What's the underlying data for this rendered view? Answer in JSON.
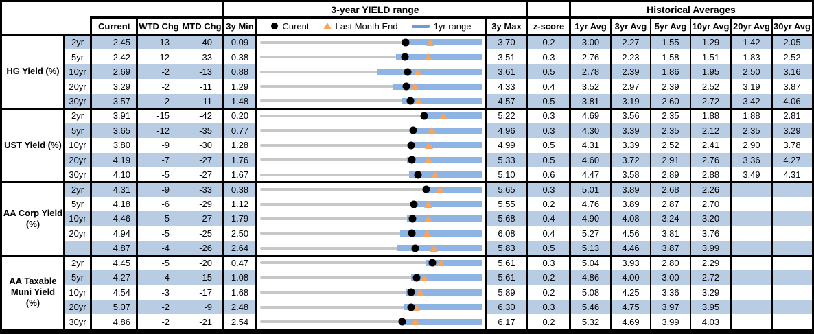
{
  "header": {
    "range_title": "3-year YIELD range",
    "hist_title": "Historical Averages",
    "current": "Current",
    "wtd": "WTD Chg",
    "mtd": "MTD Chg",
    "min3y": "3y Min",
    "max3y": "3y Max",
    "zscore": "z-score",
    "avgs": [
      "1yr Avg",
      "3yr Avg",
      "5yr Avg",
      "10yr Avg",
      "20yr Avg",
      "30yr Avg"
    ],
    "legend": {
      "current": "Curent",
      "last_month": "Last Month End",
      "range": "1yr range"
    }
  },
  "colors": {
    "stripe": "#b8cce4",
    "bar": "#8db4e2",
    "track": "#c7c7c7",
    "triangle": "#f9a45c",
    "dot": "#000000",
    "legend_bar": "#6d9dd5",
    "border": "#000000"
  },
  "chart_data": {
    "type": "table",
    "title": "3-year YIELD range",
    "note": "Each row is a bullet/range chart: gray track spans 3y Min..3y Max, blue bar = 1yr range, black dot = Current, orange triangle = Last Month End. 20yr/30yr averages blank for AA Corp and AA Taxable Muni.",
    "groups": [
      {
        "label": "HG Yield (%)",
        "rows": [
          {
            "tenor": "2yr",
            "current": "2.45",
            "wtd": "-13",
            "mtd": "-40",
            "min": "0.09",
            "max": "3.70",
            "zscore": "0.2",
            "avgs": [
              "3.00",
              "2.27",
              "1.55",
              "1.29",
              "1.42",
              "2.05"
            ],
            "min_num": 0.09,
            "max_num": 3.7,
            "cur_num": 2.45,
            "lm_num": 2.85,
            "bar_lo": 2.38,
            "bar_hi": 3.7
          },
          {
            "tenor": "5yr",
            "current": "2.42",
            "wtd": "-12",
            "mtd": "-33",
            "min": "0.38",
            "max": "3.51",
            "zscore": "0.3",
            "avgs": [
              "2.76",
              "2.23",
              "1.58",
              "1.51",
              "1.83",
              "2.52"
            ],
            "min_num": 0.38,
            "max_num": 3.51,
            "cur_num": 2.42,
            "lm_num": 2.75,
            "bar_lo": 2.29,
            "bar_hi": 3.51
          },
          {
            "tenor": "10yr",
            "current": "2.69",
            "wtd": "-2",
            "mtd": "-13",
            "min": "0.88",
            "max": "3.61",
            "zscore": "0.5",
            "avgs": [
              "2.78",
              "2.39",
              "1.86",
              "1.95",
              "2.50",
              "3.16"
            ],
            "min_num": 0.88,
            "max_num": 3.61,
            "cur_num": 2.69,
            "lm_num": 2.82,
            "bar_lo": 2.31,
            "bar_hi": 3.61
          },
          {
            "tenor": "20yr",
            "current": "3.29",
            "wtd": "-2",
            "mtd": "-11",
            "min": "1.29",
            "max": "4.33",
            "zscore": "0.4",
            "avgs": [
              "3.52",
              "2.97",
              "2.39",
              "2.52",
              "3.19",
              "3.87"
            ],
            "min_num": 1.29,
            "max_num": 4.33,
            "cur_num": 3.29,
            "lm_num": 3.4,
            "bar_lo": 3.11,
            "bar_hi": 4.33
          },
          {
            "tenor": "30yr",
            "current": "3.57",
            "wtd": "-2",
            "mtd": "-11",
            "min": "1.48",
            "max": "4.57",
            "zscore": "0.5",
            "avgs": [
              "3.81",
              "3.19",
              "2.60",
              "2.72",
              "3.42",
              "4.06"
            ],
            "min_num": 1.48,
            "max_num": 4.57,
            "cur_num": 3.57,
            "lm_num": 3.68,
            "bar_lo": 3.44,
            "bar_hi": 4.57
          }
        ]
      },
      {
        "label": "UST Yield (%)",
        "rows": [
          {
            "tenor": "2yr",
            "current": "3.91",
            "wtd": "-15",
            "mtd": "-42",
            "min": "0.20",
            "max": "5.22",
            "zscore": "0.3",
            "avgs": [
              "4.69",
              "3.56",
              "2.35",
              "1.88",
              "1.88",
              "2.81"
            ],
            "min_num": 0.2,
            "max_num": 5.22,
            "cur_num": 3.91,
            "lm_num": 4.33,
            "bar_lo": 3.83,
            "bar_hi": 5.22
          },
          {
            "tenor": "5yr",
            "current": "3.65",
            "wtd": "-12",
            "mtd": "-35",
            "min": "0.77",
            "max": "4.96",
            "zscore": "0.3",
            "avgs": [
              "4.30",
              "3.39",
              "2.35",
              "2.12",
              "2.35",
              "3.29"
            ],
            "min_num": 0.77,
            "max_num": 4.96,
            "cur_num": 3.65,
            "lm_num": 4.0,
            "bar_lo": 3.63,
            "bar_hi": 4.96
          },
          {
            "tenor": "10yr",
            "current": "3.80",
            "wtd": "-9",
            "mtd": "-30",
            "min": "1.28",
            "max": "4.99",
            "zscore": "0.5",
            "avgs": [
              "4.31",
              "3.39",
              "2.52",
              "2.41",
              "2.90",
              "3.78"
            ],
            "min_num": 1.28,
            "max_num": 4.99,
            "cur_num": 3.8,
            "lm_num": 4.1,
            "bar_lo": 3.78,
            "bar_hi": 4.99
          },
          {
            "tenor": "20yr",
            "current": "4.19",
            "wtd": "-7",
            "mtd": "-27",
            "min": "1.76",
            "max": "5.33",
            "zscore": "0.5",
            "avgs": [
              "4.60",
              "3.72",
              "2.91",
              "2.76",
              "3.36",
              "4.27"
            ],
            "min_num": 1.76,
            "max_num": 5.33,
            "cur_num": 4.19,
            "lm_num": 4.46,
            "bar_lo": 4.12,
            "bar_hi": 5.33
          },
          {
            "tenor": "30yr",
            "current": "4.10",
            "wtd": "-5",
            "mtd": "-27",
            "min": "1.67",
            "max": "5.10",
            "zscore": "0.6",
            "avgs": [
              "4.47",
              "3.58",
              "2.89",
              "2.88",
              "3.49",
              "4.31"
            ],
            "min_num": 1.67,
            "max_num": 5.1,
            "cur_num": 4.1,
            "lm_num": 4.37,
            "bar_lo": 3.97,
            "bar_hi": 5.1
          }
        ]
      },
      {
        "label": "AA Corp Yield\n(%)",
        "rows": [
          {
            "tenor": "2yr",
            "current": "4.31",
            "wtd": "-9",
            "mtd": "-33",
            "min": "0.38",
            "max": "5.65",
            "zscore": "0.3",
            "avgs": [
              "5.01",
              "3.89",
              "2.68",
              "2.26",
              "",
              ""
            ],
            "min_num": 0.38,
            "max_num": 5.65,
            "cur_num": 4.31,
            "lm_num": 4.64,
            "bar_lo": 4.28,
            "bar_hi": 5.65
          },
          {
            "tenor": "5yr",
            "current": "4.18",
            "wtd": "-6",
            "mtd": "-29",
            "min": "1.12",
            "max": "5.55",
            "zscore": "0.2",
            "avgs": [
              "4.76",
              "3.89",
              "2.87",
              "2.70",
              "",
              ""
            ],
            "min_num": 1.12,
            "max_num": 5.55,
            "cur_num": 4.18,
            "lm_num": 4.47,
            "bar_lo": 4.15,
            "bar_hi": 5.55
          },
          {
            "tenor": "10yr",
            "current": "4.46",
            "wtd": "-5",
            "mtd": "-27",
            "min": "1.79",
            "max": "5.68",
            "zscore": "0.4",
            "avgs": [
              "4.90",
              "4.08",
              "3.24",
              "3.20",
              "",
              ""
            ],
            "min_num": 1.79,
            "max_num": 5.68,
            "cur_num": 4.46,
            "lm_num": 4.73,
            "bar_lo": 4.36,
            "bar_hi": 5.68
          },
          {
            "tenor": "20yr",
            "current": "4.94",
            "wtd": "-5",
            "mtd": "-25",
            "min": "2.50",
            "max": "6.08",
            "zscore": "0.4",
            "avgs": [
              "5.27",
              "4.56",
              "3.81",
              "3.76",
              "",
              ""
            ],
            "min_num": 2.5,
            "max_num": 6.08,
            "cur_num": 4.94,
            "lm_num": 5.19,
            "bar_lo": 4.75,
            "bar_hi": 6.08
          },
          {
            "tenor": "",
            "current": "4.87",
            "wtd": "-4",
            "mtd": "-26",
            "min": "2.64",
            "max": "5.83",
            "zscore": "0.5",
            "avgs": [
              "5.13",
              "4.46",
              "3.87",
              "3.99",
              "",
              ""
            ],
            "min_num": 2.64,
            "max_num": 5.83,
            "cur_num": 4.87,
            "lm_num": 5.13,
            "bar_lo": 4.6,
            "bar_hi": 5.83
          }
        ]
      },
      {
        "label": "AA Taxable\nMuni Yield\n(%)",
        "rows": [
          {
            "tenor": "2yr",
            "current": "4.45",
            "wtd": "-5",
            "mtd": "-20",
            "min": "0.47",
            "max": "5.61",
            "zscore": "0.3",
            "avgs": [
              "5.04",
              "3.93",
              "2.80",
              "2.29",
              "",
              ""
            ],
            "min_num": 0.47,
            "max_num": 5.61,
            "cur_num": 4.45,
            "lm_num": 4.65,
            "bar_lo": 4.31,
            "bar_hi": 5.61
          },
          {
            "tenor": "5yr",
            "current": "4.27",
            "wtd": "-4",
            "mtd": "-15",
            "min": "1.08",
            "max": "5.61",
            "zscore": "0.2",
            "avgs": [
              "4.86",
              "4.00",
              "3.00",
              "2.72",
              "",
              ""
            ],
            "min_num": 1.08,
            "max_num": 5.61,
            "cur_num": 4.27,
            "lm_num": 4.42,
            "bar_lo": 4.15,
            "bar_hi": 5.61
          },
          {
            "tenor": "10yr",
            "current": "4.54",
            "wtd": "-3",
            "mtd": "-17",
            "min": "1.68",
            "max": "5.89",
            "zscore": "0.2",
            "avgs": [
              "5.08",
              "4.25",
              "3.36",
              "3.29",
              "",
              ""
            ],
            "min_num": 1.68,
            "max_num": 5.89,
            "cur_num": 4.54,
            "lm_num": 4.71,
            "bar_lo": 4.45,
            "bar_hi": 5.89
          },
          {
            "tenor": "20yr",
            "current": "5.07",
            "wtd": "-2",
            "mtd": "-9",
            "min": "2.48",
            "max": "6.30",
            "zscore": "0.3",
            "avgs": [
              "5.46",
              "4.75",
              "3.97",
              "3.95",
              "",
              ""
            ],
            "min_num": 2.48,
            "max_num": 6.3,
            "cur_num": 5.07,
            "lm_num": 5.16,
            "bar_lo": 4.96,
            "bar_hi": 6.3
          },
          {
            "tenor": "30yr",
            "current": "4.86",
            "wtd": "-2",
            "mtd": "-21",
            "min": "2.54",
            "max": "6.17",
            "zscore": "0.2",
            "avgs": [
              "5.32",
              "4.69",
              "3.99",
              "4.03",
              "",
              ""
            ],
            "min_num": 2.54,
            "max_num": 6.17,
            "cur_num": 4.86,
            "lm_num": 5.07,
            "bar_lo": 4.82,
            "bar_hi": 6.17
          }
        ]
      }
    ]
  }
}
